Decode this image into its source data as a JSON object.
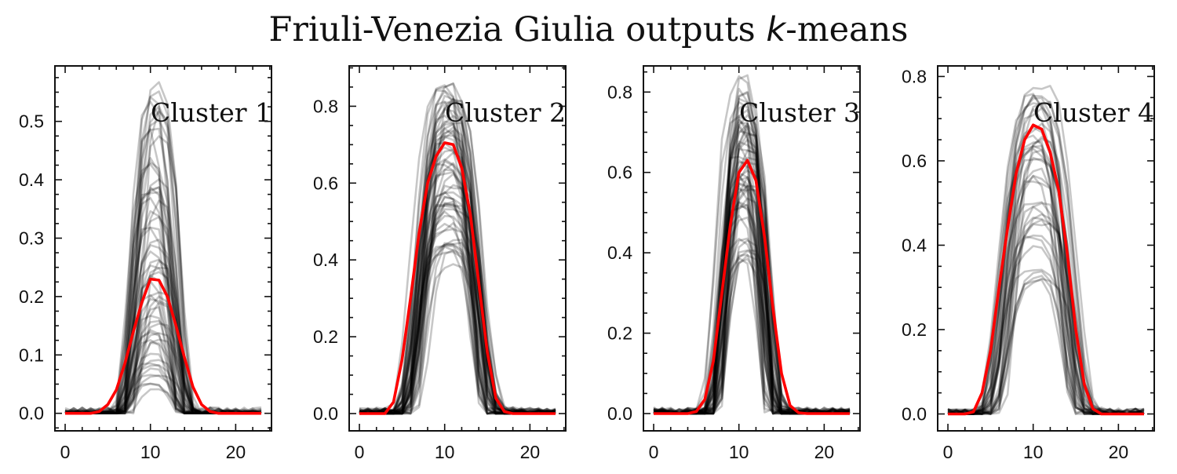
{
  "title": {
    "main": "Friuli-Venezia Giulia outputs ",
    "k": "k",
    "suffix": "-means"
  },
  "colors": {
    "member_lines": "#000000",
    "centroid": "#ff0000",
    "axes": "#111111"
  },
  "chart_data": [
    {
      "type": "line",
      "label": "Cluster 1",
      "x": [
        0,
        1,
        2,
        3,
        4,
        5,
        6,
        7,
        8,
        9,
        10,
        11,
        12,
        13,
        14,
        15,
        16,
        17,
        18,
        19,
        20,
        21,
        22,
        23
      ],
      "xlim": [
        -1.2,
        24.2
      ],
      "ylim": [
        -0.03,
        0.595
      ],
      "xticks": [
        0,
        10,
        20
      ],
      "yticks": [
        0.0,
        0.1,
        0.2,
        0.3,
        0.4,
        0.5
      ],
      "yticklabels": [
        "0.0",
        "0.1",
        "0.2",
        "0.3",
        "0.4",
        "0.5"
      ],
      "centroid": [
        0,
        0,
        0,
        0,
        0.003,
        0.015,
        0.04,
        0.085,
        0.14,
        0.19,
        0.23,
        0.228,
        0.2,
        0.15,
        0.095,
        0.045,
        0.015,
        0.003,
        0,
        0,
        0,
        0,
        0,
        0
      ],
      "profile": {
        "peak_min": 0.03,
        "peak_max": 0.57,
        "center": 10.5,
        "width": 2.6,
        "count": 60
      }
    },
    {
      "type": "line",
      "label": "Cluster 2",
      "x": [
        0,
        1,
        2,
        3,
        4,
        5,
        6,
        7,
        8,
        9,
        10,
        11,
        12,
        13,
        14,
        15,
        16,
        17,
        18,
        19,
        20,
        21,
        22,
        23
      ],
      "xlim": [
        -1.2,
        24.2
      ],
      "ylim": [
        -0.045,
        0.905
      ],
      "xticks": [
        0,
        10,
        20
      ],
      "yticks": [
        0.0,
        0.2,
        0.4,
        0.6,
        0.8
      ],
      "yticklabels": [
        "0.0",
        "0.2",
        "0.4",
        "0.6",
        "0.8"
      ],
      "centroid": [
        0,
        0,
        0,
        0,
        0.03,
        0.14,
        0.3,
        0.47,
        0.6,
        0.67,
        0.705,
        0.7,
        0.64,
        0.52,
        0.34,
        0.16,
        0.04,
        0.005,
        0,
        0,
        0,
        0,
        0,
        0
      ],
      "profile": {
        "peak_min": 0.35,
        "peak_max": 0.86,
        "center": 10.5,
        "width": 3.6,
        "count": 60
      }
    },
    {
      "type": "line",
      "label": "Cluster 3",
      "x": [
        0,
        1,
        2,
        3,
        4,
        5,
        6,
        7,
        8,
        9,
        10,
        11,
        12,
        13,
        14,
        15,
        16,
        17,
        18,
        19,
        20,
        21,
        22,
        23
      ],
      "xlim": [
        -1.2,
        24.2
      ],
      "ylim": [
        -0.043,
        0.865
      ],
      "xticks": [
        0,
        10,
        20
      ],
      "yticks": [
        0.0,
        0.2,
        0.4,
        0.6,
        0.8
      ],
      "yticklabels": [
        "0.0",
        "0.2",
        "0.4",
        "0.6",
        "0.8"
      ],
      "centroid": [
        0,
        0,
        0,
        0,
        0,
        0.005,
        0.035,
        0.13,
        0.3,
        0.47,
        0.6,
        0.63,
        0.58,
        0.44,
        0.26,
        0.1,
        0.02,
        0.002,
        0,
        0,
        0,
        0,
        0,
        0
      ],
      "profile": {
        "peak_min": 0.38,
        "peak_max": 0.83,
        "center": 10.6,
        "width": 2.6,
        "count": 60
      }
    },
    {
      "type": "line",
      "label": "Cluster 4",
      "x": [
        0,
        1,
        2,
        3,
        4,
        5,
        6,
        7,
        8,
        9,
        10,
        11,
        12,
        13,
        14,
        15,
        16,
        17,
        18,
        19,
        20,
        21,
        22,
        23
      ],
      "xlim": [
        -1.2,
        24.2
      ],
      "ylim": [
        -0.04,
        0.825
      ],
      "xticks": [
        0,
        10,
        20
      ],
      "yticks": [
        0.0,
        0.2,
        0.4,
        0.6,
        0.8
      ],
      "yticklabels": [
        "0.0",
        "0.2",
        "0.4",
        "0.6",
        "0.8"
      ],
      "centroid": [
        0,
        0,
        0,
        0.005,
        0.05,
        0.15,
        0.3,
        0.44,
        0.57,
        0.65,
        0.685,
        0.675,
        0.62,
        0.53,
        0.38,
        0.2,
        0.07,
        0.012,
        0,
        0,
        0,
        0,
        0,
        0
      ],
      "profile": {
        "peak_min": 0.3,
        "peak_max": 0.79,
        "center": 10.4,
        "width": 3.9,
        "count": 40
      }
    }
  ]
}
